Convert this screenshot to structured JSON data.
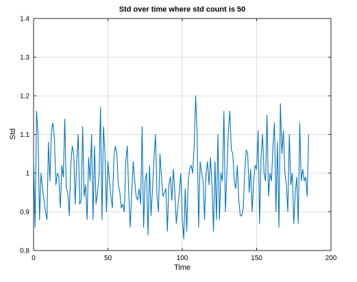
{
  "chart_data": {
    "type": "line",
    "title": "Std over time where std count is 50",
    "xlabel": "Time",
    "ylabel": "Std",
    "xlim": [
      0,
      200
    ],
    "ylim": [
      0.8,
      1.4
    ],
    "grid": true,
    "x_ticks": [
      0,
      50,
      100,
      150,
      200
    ],
    "y_ticks": [
      0.8,
      0.9,
      1.0,
      1.1,
      1.2,
      1.3,
      1.4
    ],
    "x_tick_labels": [
      "0",
      "50",
      "100",
      "150",
      "200"
    ],
    "y_tick_labels": [
      "0.8",
      "0.9",
      "1",
      "1.1",
      "1.2",
      "1.3",
      "1.4"
    ],
    "line_color": "#0072bd",
    "series": [
      {
        "x_start": 0,
        "x_step": 1,
        "values": [
          1.04,
          0.86,
          1.16,
          1.1,
          0.88,
          1.0,
          0.96,
          0.93,
          0.9,
          0.88,
          1.08,
          0.98,
          1.11,
          1.13,
          1.09,
          0.97,
          1.0,
          0.99,
          0.91,
          1.02,
          0.99,
          1.14,
          0.96,
          0.95,
          0.89,
          1.02,
          1.07,
          1.05,
          0.92,
          1.03,
          1.1,
          0.92,
          0.93,
          1.12,
          0.94,
          0.97,
          0.88,
          1.04,
          0.98,
          1.1,
          0.88,
          1.07,
          0.92,
          0.95,
          0.99,
          1.17,
          0.88,
          1.12,
          1.05,
          0.9,
          1.03,
          0.98,
          0.94,
          0.91,
          1.04,
          1.07,
          1.05,
          0.97,
          0.95,
          0.91,
          0.92,
          0.9,
          1.03,
          1.07,
          0.95,
          0.86,
          0.95,
          1.03,
          0.98,
          0.94,
          0.93,
          0.96,
          0.92,
          1.12,
          0.86,
          0.98,
          1.0,
          0.84,
          1.02,
          0.89,
          0.96,
          1.04,
          1.1,
          0.94,
          0.9,
          1.05,
          0.99,
          0.94,
          0.95,
          0.96,
          0.85,
          0.97,
          0.99,
          0.93,
          1.01,
          0.95,
          0.87,
          0.91,
          0.95,
          1.0,
          0.88,
          0.83,
          0.96,
          0.85,
          0.98,
          1.01,
          1.02,
          1.0,
          1.07,
          1.2,
          1.1,
          0.86,
          1.03,
          1.0,
          0.98,
          0.88,
          1.0,
          1.03,
          0.97,
          1.04,
          0.97,
          0.85,
          1.03,
          0.88,
          1.1,
          0.88,
          1.0,
          0.98,
          1.16,
          0.9,
          1.0,
          1.11,
          1.16,
          1.06,
          1.05,
          0.98,
          0.96,
          1.02,
          0.93,
          0.89,
          0.89,
          0.91,
          1.0,
          1.06,
          1.05,
          0.95,
          1.01,
          0.9,
          0.98,
          1.02,
          1.01,
          1.11,
          0.87,
          1.04,
          1.1,
          1.0,
          0.98,
          1.15,
          0.94,
          1.0,
          0.98,
          1.07,
          1.13,
          0.9,
          1.08,
          0.86,
          1.18,
          1.05,
          1.11,
          1.0,
          0.97,
          0.9,
          1.1,
          0.97,
          1.0,
          0.87,
          0.95,
          0.99,
          0.87,
          1.13,
          0.98,
          1.01,
          0.98,
          0.99,
          0.94,
          1.1
        ]
      }
    ]
  }
}
